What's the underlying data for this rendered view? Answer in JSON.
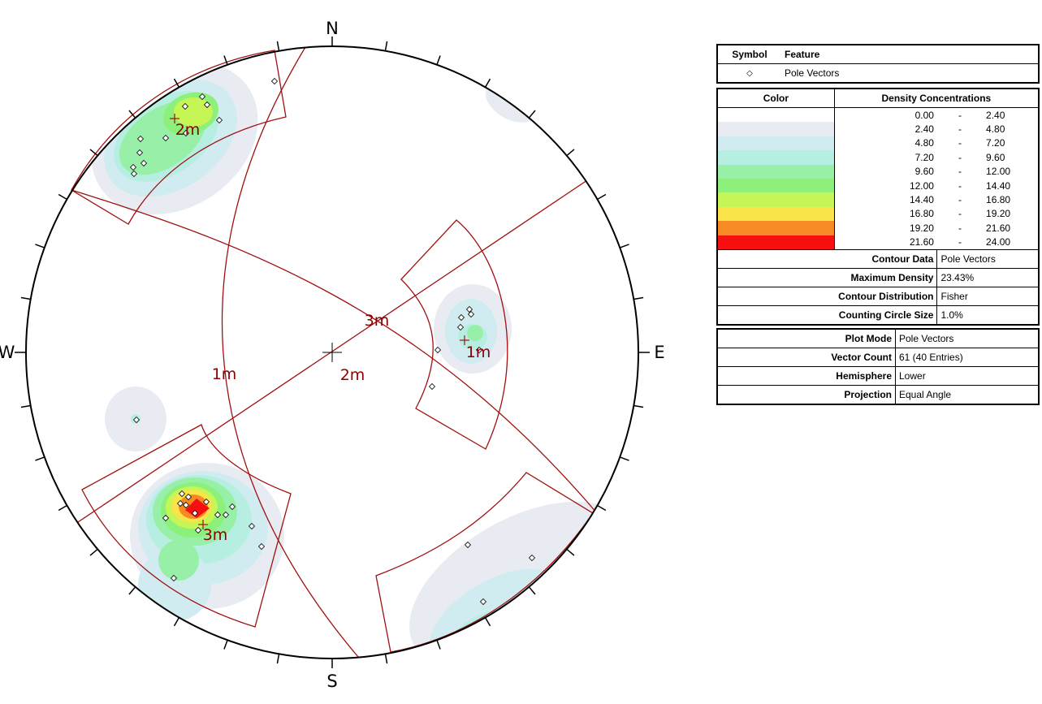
{
  "compass": {
    "north": "N",
    "south": "S",
    "east": "E",
    "west": "W"
  },
  "set_labels": {
    "set1": "1m",
    "set2": "2m",
    "set3": "3m",
    "set1_pole": "1m",
    "set2_pole": "2m",
    "set3_pole": "3m"
  },
  "legend": {
    "symbol_header": "Symbol",
    "feature_header": "Feature",
    "symbol": "◇",
    "feature_value": "Pole Vectors",
    "color_header": "Color",
    "density_header": "Density Concentrations",
    "ranges": [
      {
        "low": "0.00",
        "high": "2.40",
        "color": "#ffffff"
      },
      {
        "low": "2.40",
        "high": "4.80",
        "color": "#e8ecf2"
      },
      {
        "low": "4.80",
        "high": "7.20",
        "color": "#d0ecf0"
      },
      {
        "low": "7.20",
        "high": "9.60",
        "color": "#b6efe2"
      },
      {
        "low": "9.60",
        "high": "12.00",
        "color": "#98f0a8"
      },
      {
        "low": "12.00",
        "high": "14.40",
        "color": "#8cf07a"
      },
      {
        "low": "14.40",
        "high": "16.80",
        "color": "#c6f556"
      },
      {
        "low": "16.80",
        "high": "19.20",
        "color": "#fbe34a"
      },
      {
        "low": "19.20",
        "high": "21.60",
        "color": "#f78a24"
      },
      {
        "low": "21.60",
        "high": "24.00",
        "color": "#f50f0f"
      }
    ],
    "range_sep": "-",
    "contour": [
      {
        "key": "Contour Data",
        "value": "Pole Vectors"
      },
      {
        "key": "Maximum Density",
        "value": "23.43%"
      },
      {
        "key": "Contour Distribution",
        "value": "Fisher"
      },
      {
        "key": "Counting Circle Size",
        "value": "1.0%"
      }
    ],
    "plot": [
      {
        "key": "Plot Mode",
        "value": "Pole Vectors"
      },
      {
        "key": "Vector Count",
        "value": "61 (40 Entries)"
      },
      {
        "key": "Hemisphere",
        "value": "Lower"
      },
      {
        "key": "Projection",
        "value": "Equal Angle"
      }
    ]
  },
  "colors": {
    "planes": "#a01010",
    "contour_levels": [
      "#e8ecf2",
      "#d0ecf0",
      "#b6efe2",
      "#98f0a8",
      "#8cf07a",
      "#c6f556",
      "#fbe34a",
      "#f78a24",
      "#f50f0f"
    ]
  }
}
